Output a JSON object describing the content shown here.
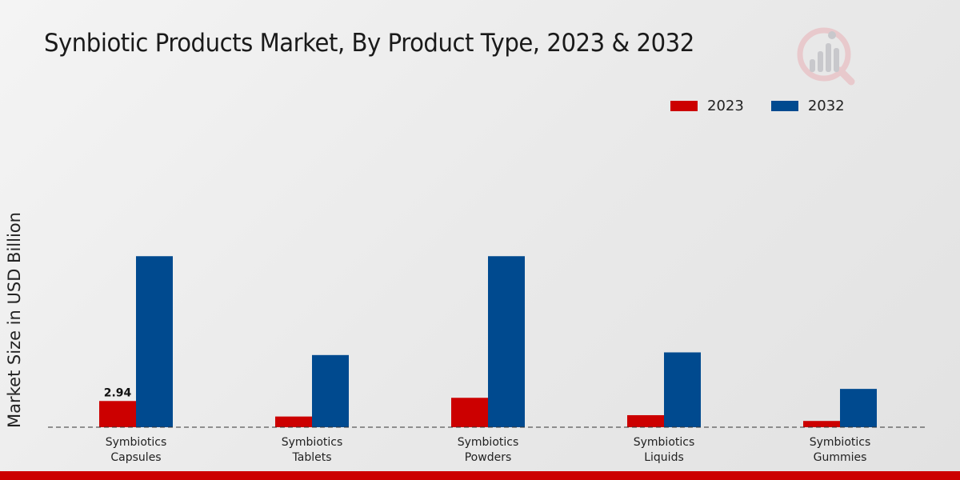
{
  "title": "Synbiotic Products Market, By Product Type, 2023 & 2032",
  "colors": {
    "series_2023": "#cc0000",
    "series_2032": "#004a8f",
    "accent_bar": "#cc0000"
  },
  "legend": [
    {
      "label": "2023",
      "color": "#cc0000"
    },
    {
      "label": "2032",
      "color": "#004a8f"
    }
  ],
  "chart_data": {
    "type": "bar",
    "title": "Synbiotic Products Market, By Product Type, 2023 & 2032",
    "xlabel": "",
    "ylabel": "Market Size in USD Billion",
    "categories": [
      "Symbiotics\nCapsules",
      "Symbiotics\nTablets",
      "Symbiotics\nPowders",
      "Symbiotics\nLiquids",
      "Symbiotics\nGummies"
    ],
    "series": [
      {
        "name": "2023",
        "values": [
          2.94,
          1.2,
          3.3,
          1.35,
          0.7
        ]
      },
      {
        "name": "2032",
        "values": [
          19.2,
          8.1,
          19.2,
          8.4,
          4.3
        ]
      }
    ],
    "data_labels": [
      {
        "series": "2023",
        "category_index": 0,
        "text": "2.94"
      }
    ],
    "ylim": [
      0,
      30
    ],
    "legend_position": "top-right",
    "grid": false
  },
  "logo_icon": "analytics-logo-icon"
}
